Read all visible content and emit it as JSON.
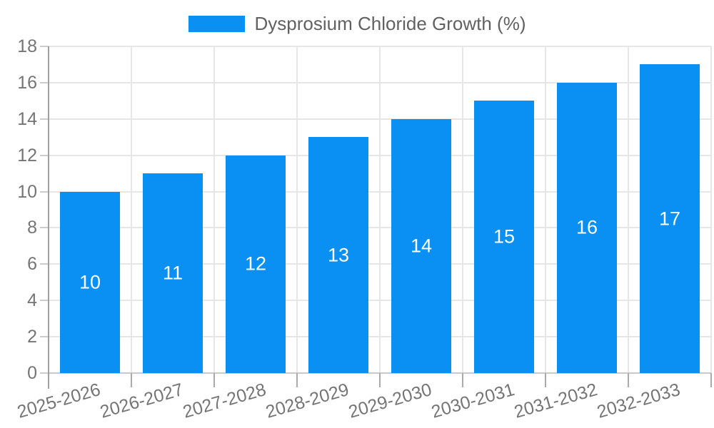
{
  "chart_data": {
    "type": "bar",
    "title": "",
    "categories": [
      "2025-2026",
      "2026-2027",
      "2027-2028",
      "2028-2029",
      "2029-2030",
      "2030-2031",
      "2031-2032",
      "2032-2033"
    ],
    "series": [
      {
        "name": "Dysprosium Chloride Growth (%)",
        "values": [
          10,
          11,
          12,
          13,
          14,
          15,
          16,
          17
        ]
      }
    ],
    "bar_value_labels": [
      "10",
      "11",
      "12",
      "13",
      "14",
      "15",
      "16",
      "17"
    ],
    "xlabel": "",
    "ylabel": "",
    "ylim": [
      0,
      18
    ],
    "yticks": [
      "0",
      "2",
      "4",
      "6",
      "8",
      "10",
      "12",
      "14",
      "16",
      "18"
    ],
    "grid": true,
    "legend_position": "top-center",
    "colors": {
      "bar": "#0a8ff2",
      "bar_label": "#ffffff",
      "axis_text": "#757575",
      "legend_text": "#616161",
      "gridline": "#e6e6e6",
      "y_axis_line": "#a0a0a0"
    }
  }
}
